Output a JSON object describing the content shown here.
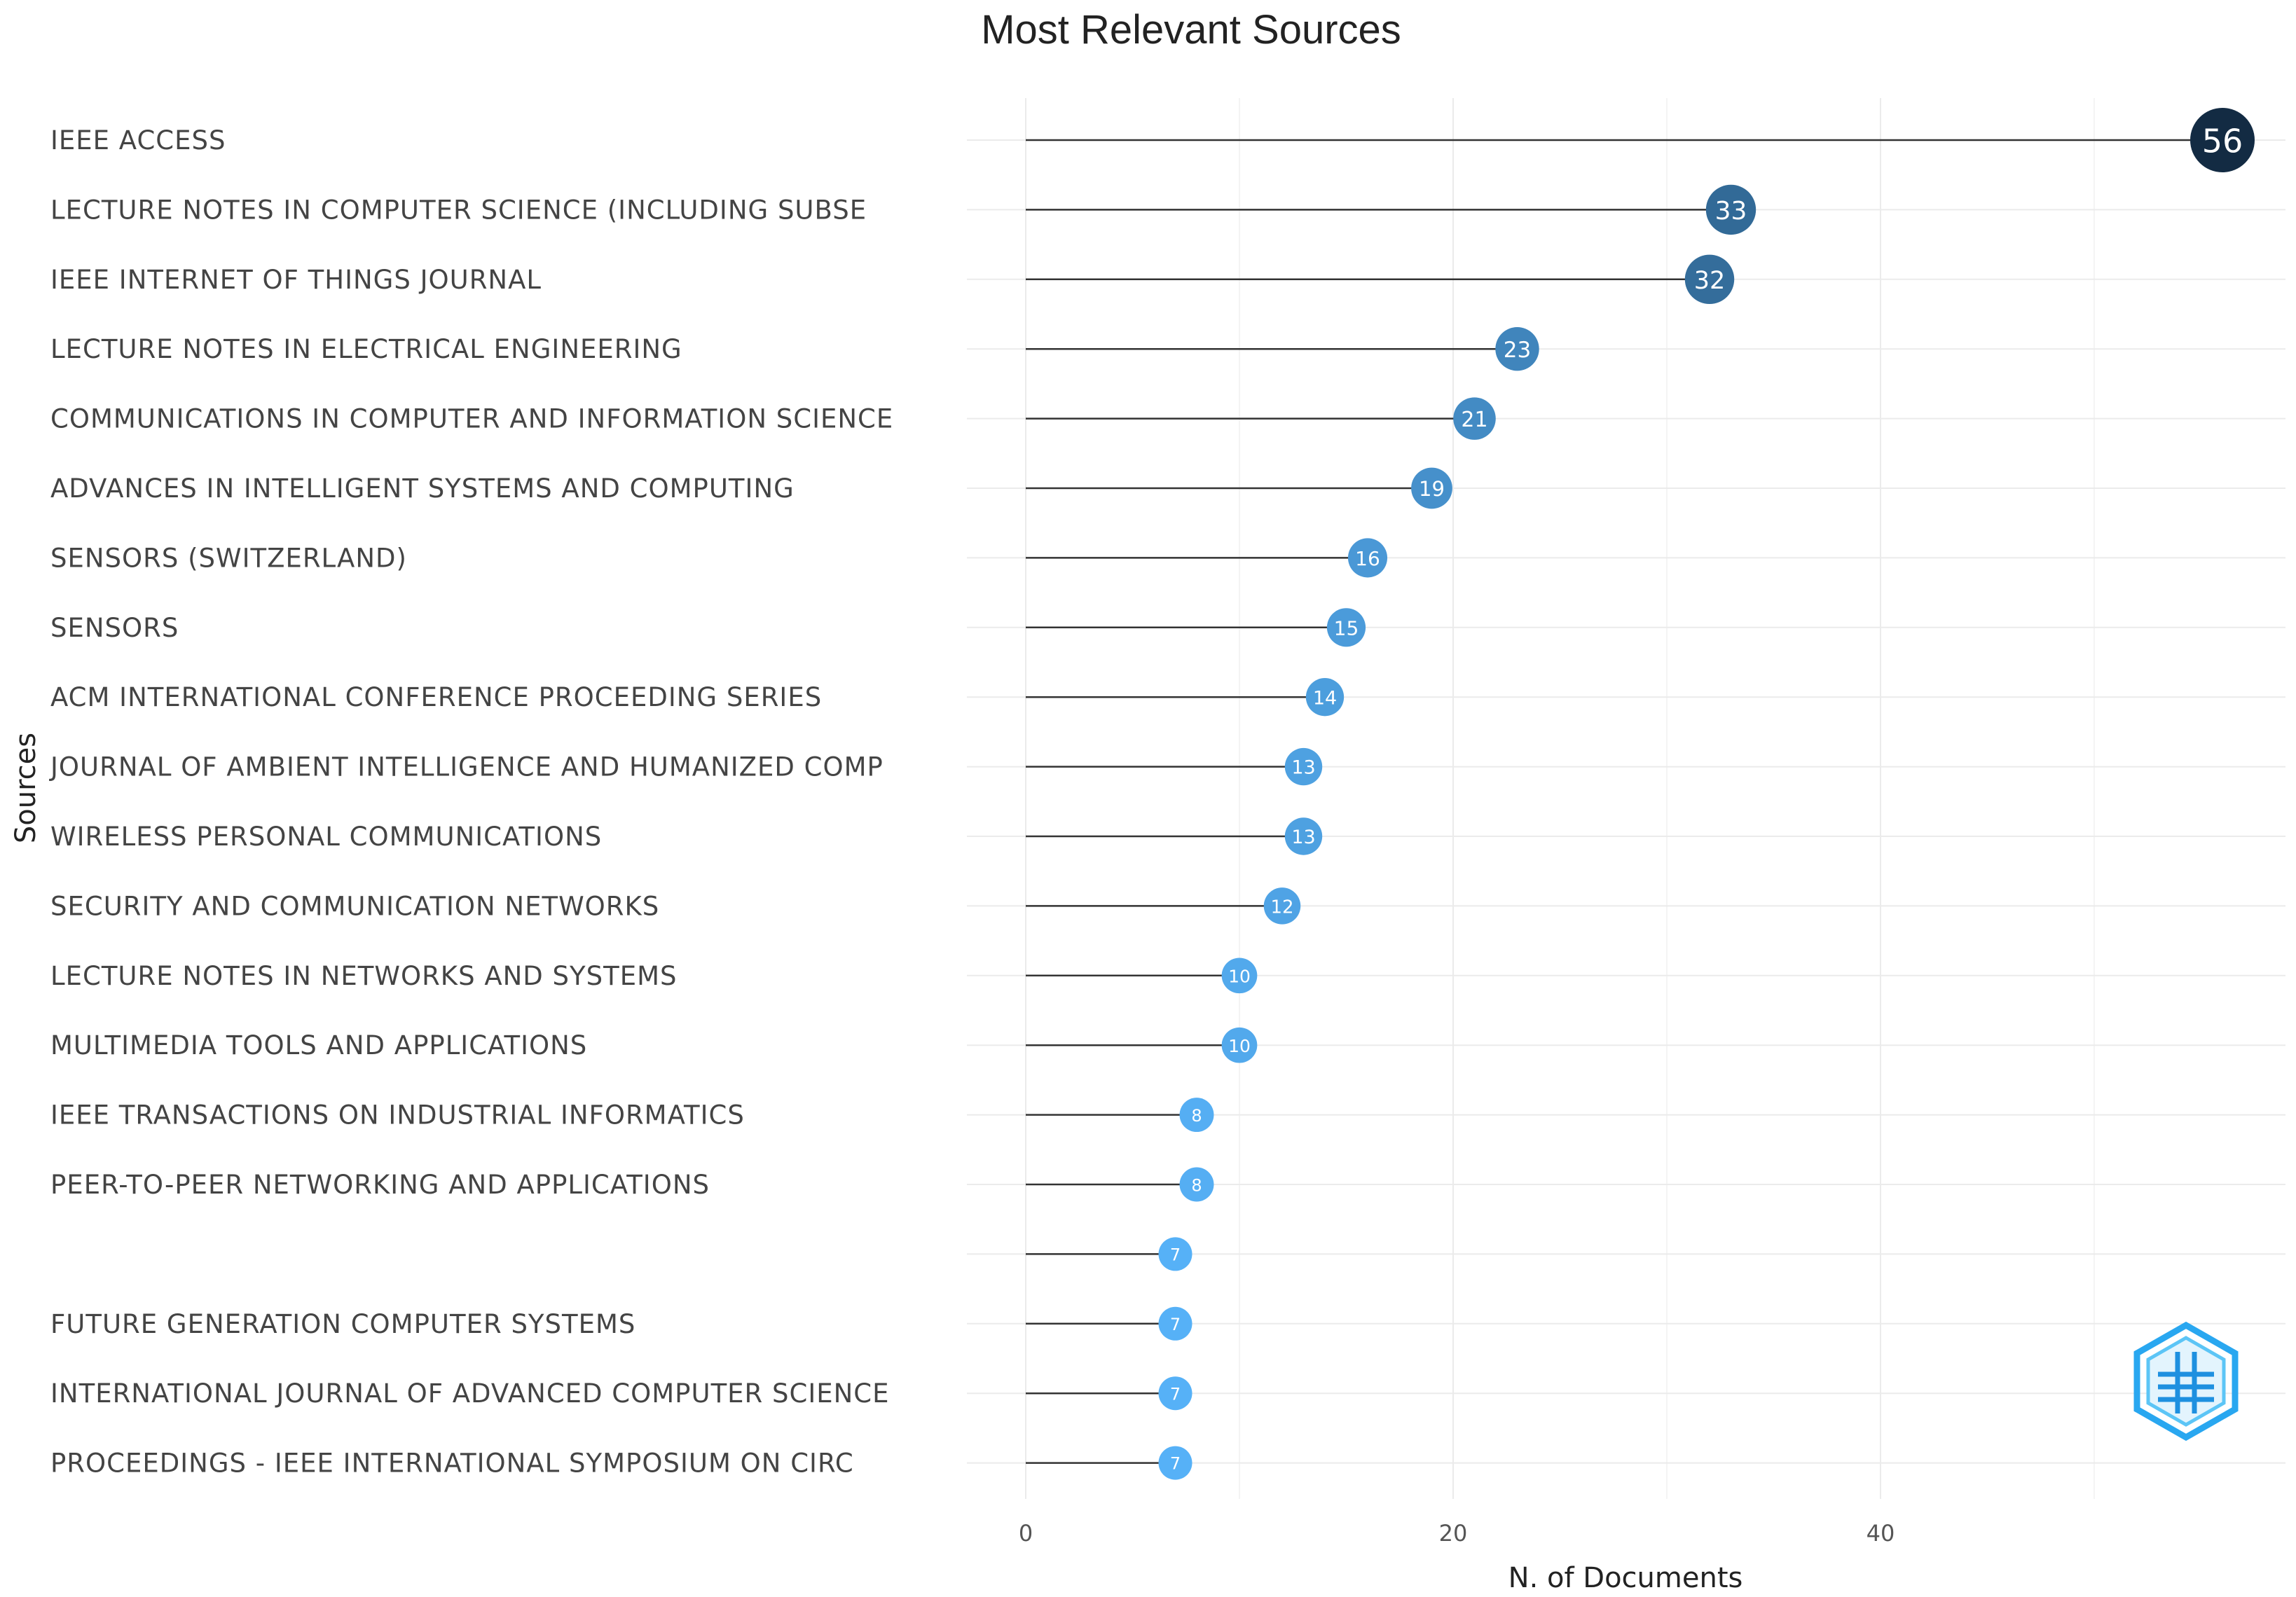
{
  "chart_data": {
    "type": "lollipop",
    "title": "Most Relevant Sources",
    "xlabel": "N. of Documents",
    "ylabel": "Sources",
    "xlim": [
      0,
      59
    ],
    "xticks": [
      0,
      20,
      40
    ],
    "grid": true,
    "categories": [
      "IEEE ACCESS",
      "LECTURE NOTES IN COMPUTER SCIENCE (INCLUDING SUBSE",
      "IEEE INTERNET OF THINGS JOURNAL",
      "LECTURE NOTES IN ELECTRICAL ENGINEERING",
      "COMMUNICATIONS IN COMPUTER AND INFORMATION SCIENCE",
      "ADVANCES IN INTELLIGENT SYSTEMS AND COMPUTING",
      "SENSORS (SWITZERLAND)",
      "SENSORS",
      "ACM INTERNATIONAL CONFERENCE PROCEEDING SERIES",
      "JOURNAL OF AMBIENT INTELLIGENCE AND HUMANIZED COMP",
      "WIRELESS PERSONAL COMMUNICATIONS",
      "SECURITY AND COMMUNICATION NETWORKS",
      "LECTURE NOTES IN NETWORKS AND SYSTEMS",
      "MULTIMEDIA TOOLS AND APPLICATIONS",
      "IEEE TRANSACTIONS ON INDUSTRIAL INFORMATICS",
      "PEER-TO-PEER NETWORKING AND APPLICATIONS",
      "",
      "FUTURE GENERATION COMPUTER SYSTEMS",
      "INTERNATIONAL JOURNAL OF ADVANCED COMPUTER SCIENCE",
      "PROCEEDINGS - IEEE INTERNATIONAL SYMPOSIUM ON CIRC"
    ],
    "values": [
      56,
      33,
      32,
      23,
      21,
      19,
      16,
      15,
      14,
      13,
      13,
      12,
      10,
      10,
      8,
      8,
      7,
      7,
      7,
      7
    ],
    "color_low": "#56B1F7",
    "color_high": "#132B43"
  }
}
